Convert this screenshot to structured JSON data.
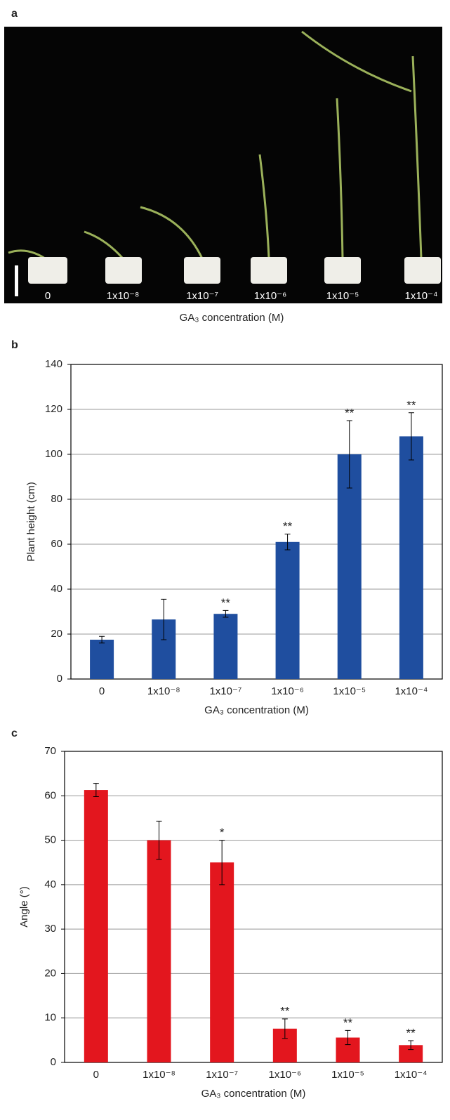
{
  "photo": {
    "panel_label": "a",
    "categories": [
      "0",
      "1x10⁻⁸",
      "1x10⁻⁷",
      "1x10⁻⁶",
      "1x10⁻⁵",
      "1x10⁻⁴"
    ],
    "xlabel": "GA₃ concentration (M)"
  },
  "chart_data": [
    {
      "type": "bar",
      "panel_label": "b",
      "ylabel": "Plant height (cm)",
      "xlabel": "GA₃ concentration (M)",
      "categories": [
        "0",
        "1x10⁻⁸",
        "1x10⁻⁷",
        "1x10⁻⁶",
        "1x10⁻⁵",
        "1x10⁻⁴"
      ],
      "values": [
        17.5,
        26.5,
        29,
        61,
        100,
        108
      ],
      "errors": [
        1.5,
        9,
        1.5,
        3.5,
        15,
        10.5
      ],
      "significance": [
        null,
        null,
        "**",
        "**",
        "**",
        "**"
      ],
      "color": "#1f4e9f",
      "ylim": [
        0,
        140
      ],
      "yticks": [
        0,
        20,
        40,
        60,
        80,
        100,
        120,
        140
      ],
      "grid": true
    },
    {
      "type": "bar",
      "panel_label": "c",
      "ylabel": "Angle (°)",
      "xlabel": "GA₃ concentration (M)",
      "categories": [
        "0",
        "1x10⁻⁸",
        "1x10⁻⁷",
        "1x10⁻⁶",
        "1x10⁻⁵",
        "1x10⁻⁴"
      ],
      "values": [
        61.3,
        50,
        45,
        7.6,
        5.6,
        3.9
      ],
      "errors": [
        1.5,
        4.3,
        5,
        2.2,
        1.6,
        1
      ],
      "significance": [
        null,
        null,
        "*",
        "**",
        "**",
        "**"
      ],
      "color": "#e3161e",
      "ylim": [
        0,
        70
      ],
      "yticks": [
        0,
        10,
        20,
        30,
        40,
        50,
        60,
        70
      ],
      "grid": true
    }
  ]
}
